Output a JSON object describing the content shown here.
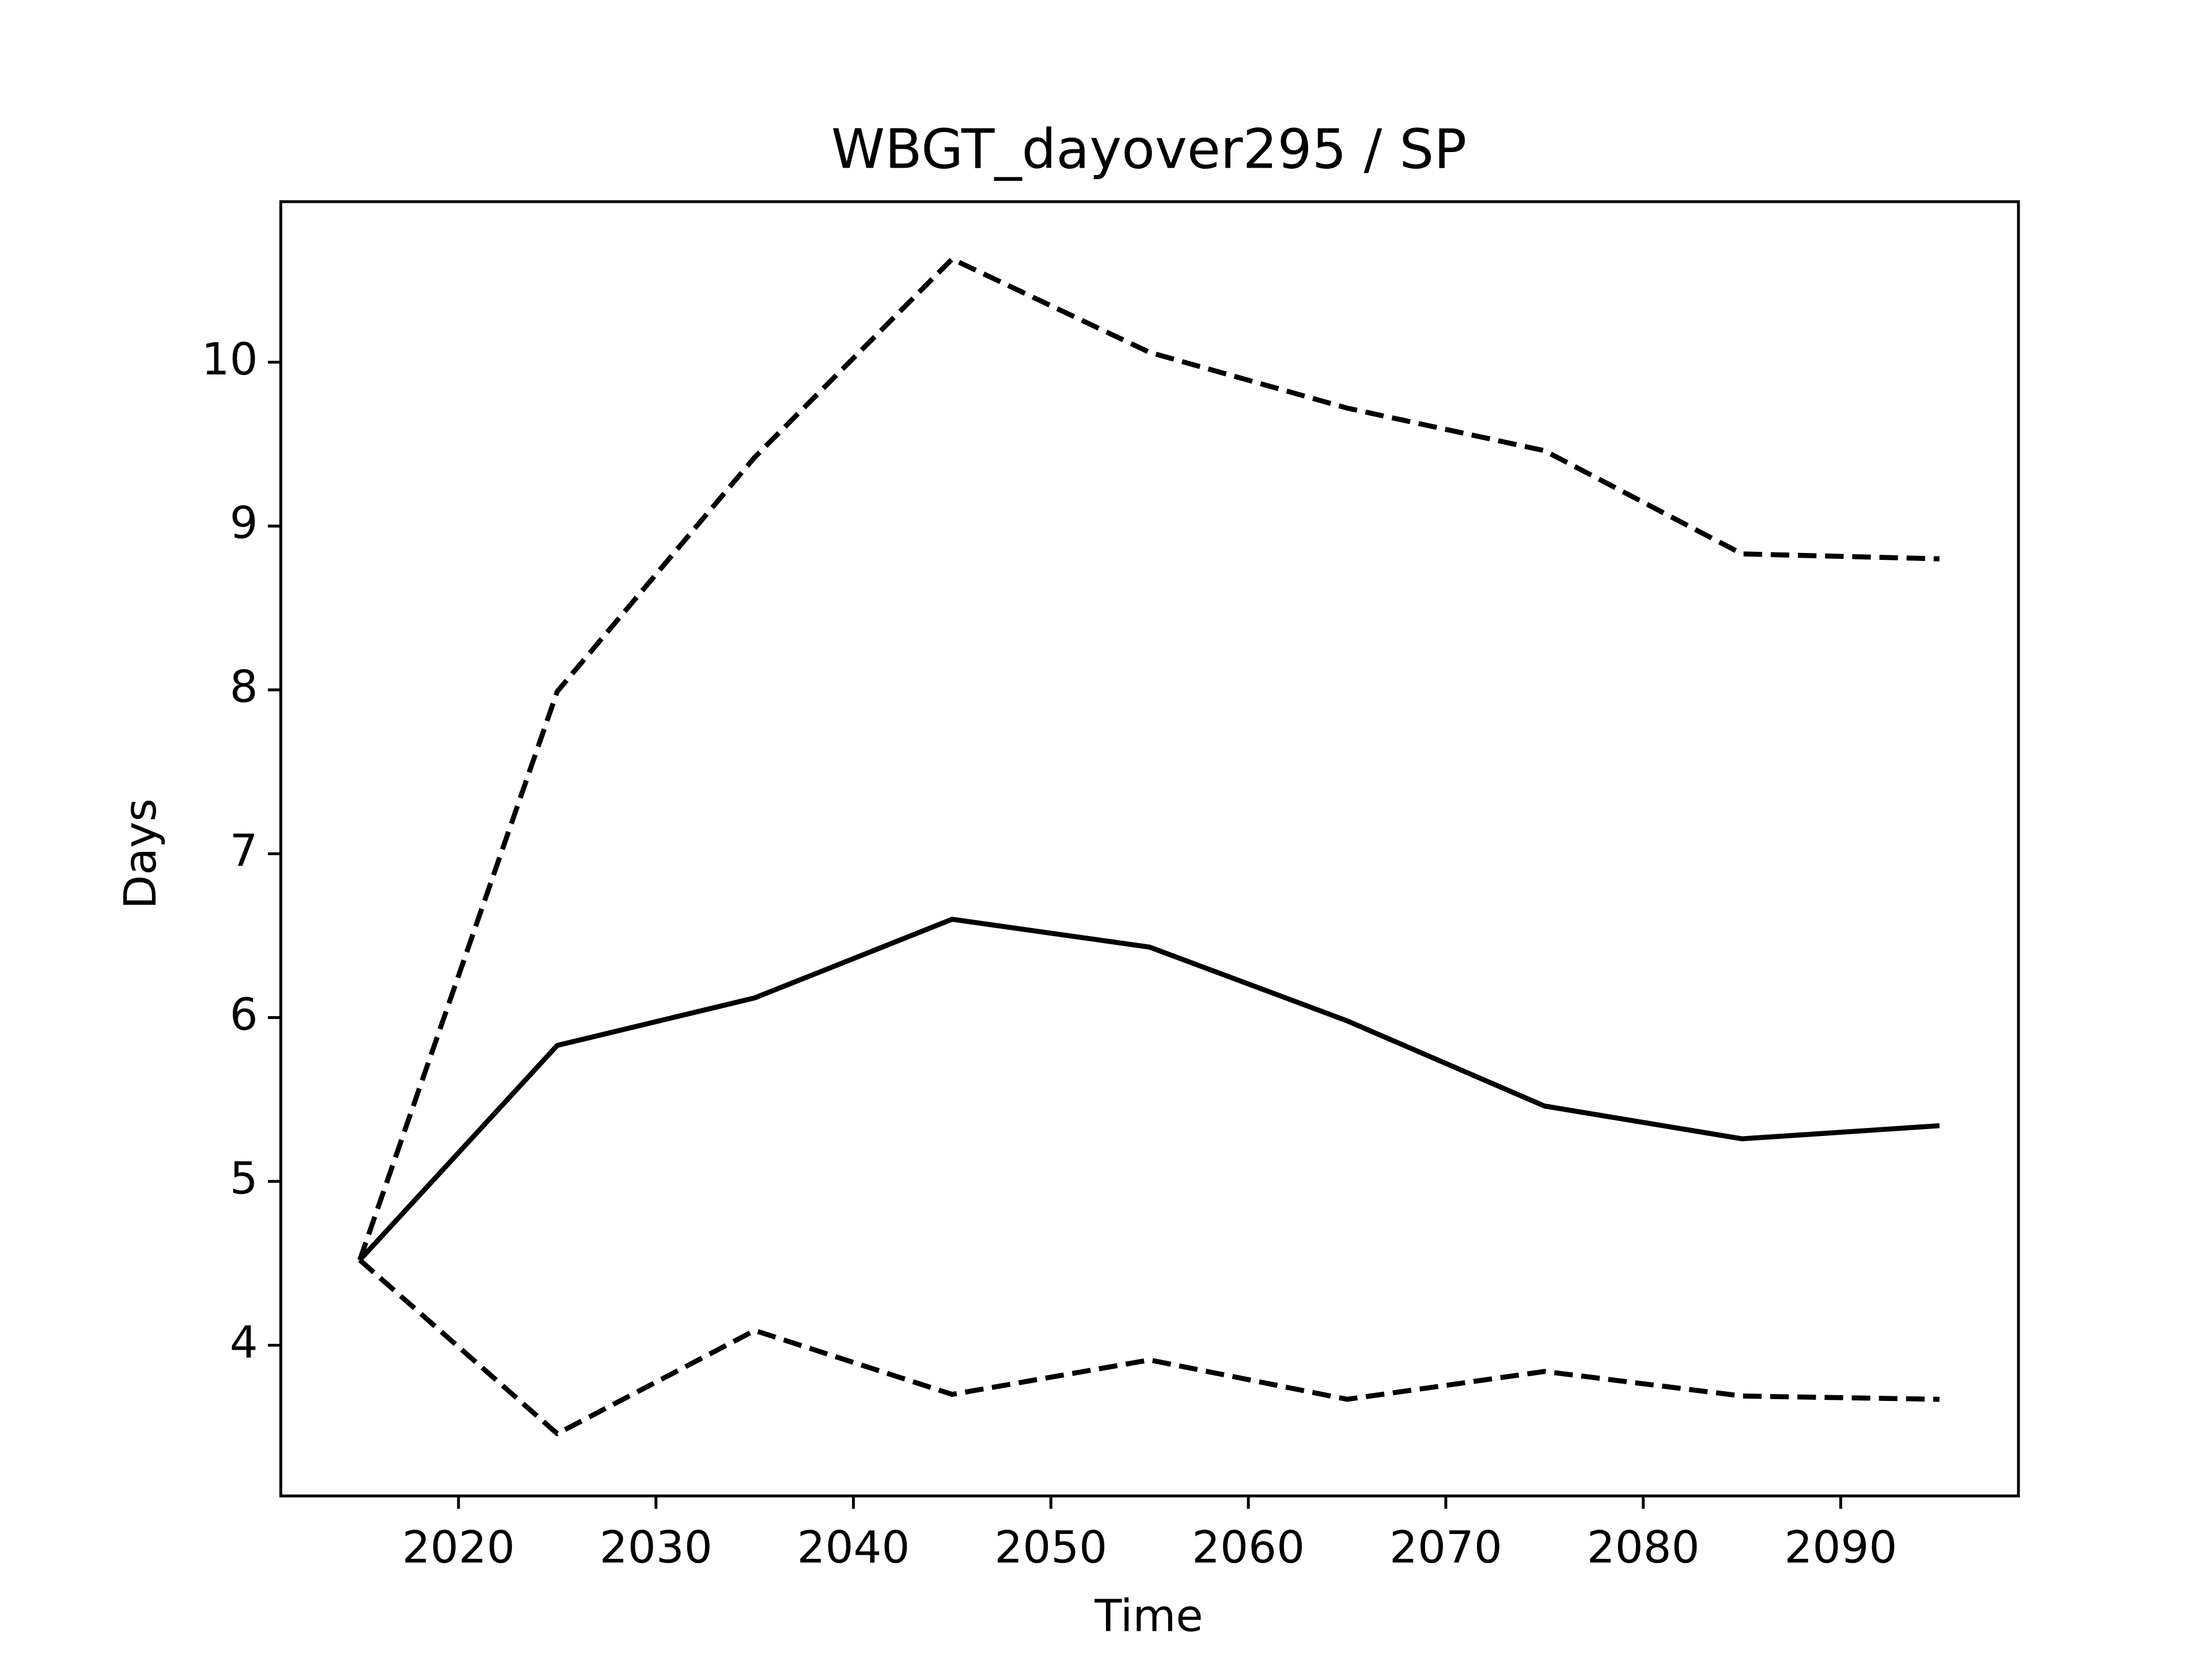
{
  "chart_data": {
    "type": "line",
    "title": "WBGT_dayover295 / SP",
    "xlabel": "Time",
    "ylabel": "Days",
    "x": [
      2015,
      2025,
      2035,
      2045,
      2055,
      2065,
      2075,
      2085,
      2095
    ],
    "series": [
      {
        "color": "#000000",
        "linestyle": "solid",
        "values": [
          4.52,
          5.83,
          6.12,
          6.6,
          6.43,
          5.98,
          5.46,
          5.26,
          5.34
        ]
      },
      {
        "color": "#000000",
        "linestyle": "dashed",
        "values": [
          4.52,
          7.99,
          9.42,
          10.63,
          10.06,
          9.72,
          9.46,
          8.83,
          8.8
        ]
      },
      {
        "color": "#000000",
        "linestyle": "dashed",
        "values": [
          4.52,
          3.46,
          4.09,
          3.7,
          3.91,
          3.67,
          3.84,
          3.69,
          3.67
        ]
      }
    ],
    "xlim": [
      2011,
      2099
    ],
    "xticks": [
      2020,
      2030,
      2040,
      2050,
      2060,
      2070,
      2080,
      2090
    ],
    "ylim": [
      3.08,
      10.98
    ],
    "yticks": [
      4,
      5,
      6,
      7,
      8,
      9,
      10
    ],
    "grid": false
  }
}
